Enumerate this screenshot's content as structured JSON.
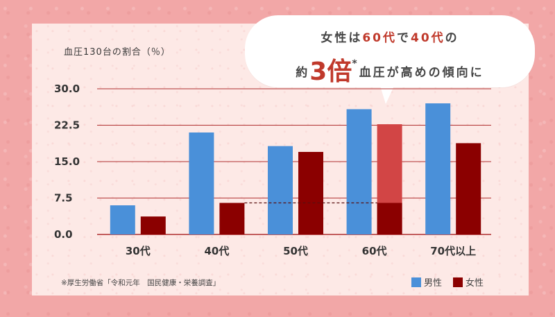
{
  "header_fragment": "",
  "ylabel": "血圧130台の割合（％）",
  "bubble": {
    "line1_parts": [
      "女性は",
      "60代",
      "で",
      "40代",
      "の"
    ],
    "line2_prefix": "約",
    "line2_big": "3倍",
    "line2_star": "*",
    "line2_suffix": "血圧が高めの傾向に"
  },
  "source": "※厚生労働省「令和元年　国民健康・栄養調査」",
  "legend": {
    "male": "男性",
    "female": "女性"
  },
  "colors": {
    "male": "#4a90d9",
    "female": "#8b0000",
    "female_highlight": "#d24545",
    "gridline": "#b03030",
    "accent": "#c0392b"
  },
  "chart_data": {
    "type": "bar",
    "categories": [
      "30代",
      "40代",
      "50代",
      "60代",
      "70代以上"
    ],
    "series": [
      {
        "name": "男性",
        "values": [
          6.0,
          21.0,
          18.2,
          25.8,
          27.0
        ]
      },
      {
        "name": "女性",
        "values": [
          3.7,
          6.5,
          17.0,
          22.7,
          18.8
        ]
      }
    ],
    "ylim": [
      0,
      30
    ],
    "yticks": [
      "0.0",
      "7.5",
      "15.0",
      "22.5",
      "30.0"
    ],
    "ytick_values": [
      0,
      7.5,
      15,
      22.5,
      30
    ],
    "grid": true,
    "legend_position": "bottom-right",
    "annotation": "女性は60代で40代の約3倍*血圧が高めの傾向に"
  }
}
